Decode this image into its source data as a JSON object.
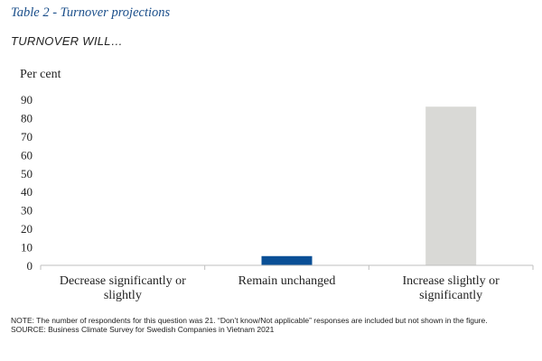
{
  "page": {
    "title": "Table 2 - Turnover projections",
    "subtitle": "TURNOVER WILL…"
  },
  "chart_data": {
    "type": "bar",
    "ylabel": "Per cent",
    "xlabel": "",
    "ylim": [
      0,
      90
    ],
    "yticks": [
      0,
      10,
      20,
      30,
      40,
      50,
      60,
      70,
      80,
      90
    ],
    "grid": false,
    "categories": [
      "Decrease significantly or slightly",
      "Remain unchanged",
      "Increase slightly or significantly"
    ],
    "category_lines": [
      [
        "Decrease significantly or",
        "slightly"
      ],
      [
        "Remain unchanged"
      ],
      [
        "Increase slightly or",
        "significantly"
      ]
    ],
    "values": [
      0,
      5,
      86
    ],
    "bar_colors": [
      "#0a4f96",
      "#0a4f96",
      "#d9d9d6"
    ]
  },
  "footer": {
    "note": "NOTE: The number of respondents for this question was 21. “Don’t know/Not applicable” responses are included but not shown in the figure.",
    "source": "SOURCE: Business Climate Survey for Swedish Companies in Vietnam 2021"
  },
  "colors": {
    "title": "#1a4e8a",
    "axis": "#bfbfbf",
    "text": "#222222"
  }
}
